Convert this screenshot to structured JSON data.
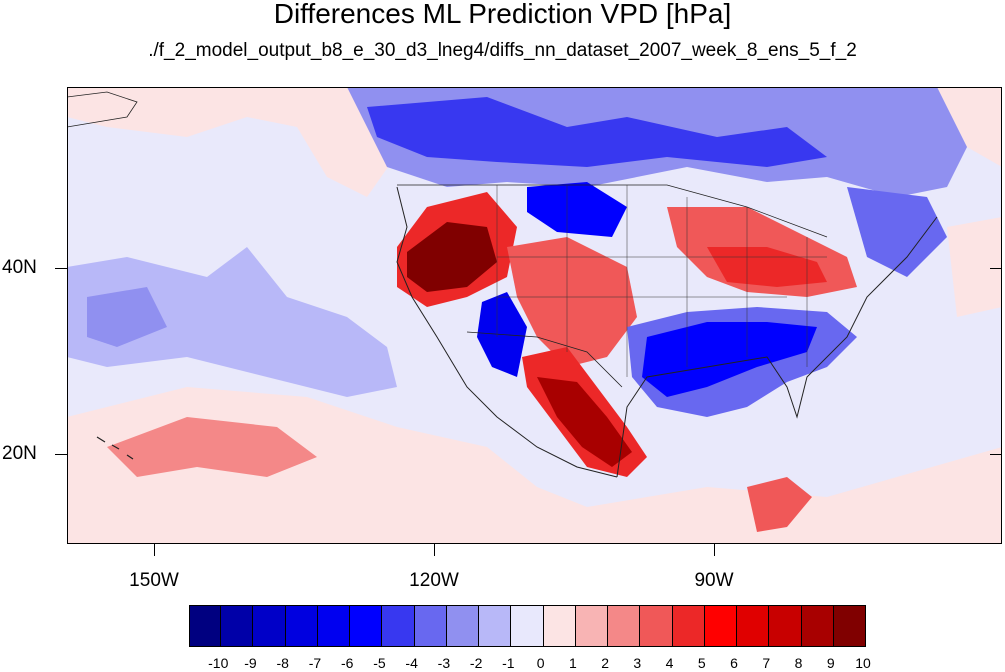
{
  "title": "Differences ML Prediction VPD [hPa]",
  "subtitle": "./f_2_model_output_b8_e_30_d3_lneg4/diffs_nn_dataset_2007_week_8_ens_5_f_2",
  "longitude_labels": [
    "150W",
    "120W",
    "90W"
  ],
  "latitude_labels": [
    "40N",
    "20N"
  ],
  "colorbar": {
    "labels": [
      "-10",
      "-9",
      "-8",
      "-7",
      "-6",
      "-5",
      "-4",
      "-3",
      "-2",
      "-1",
      "0",
      "1",
      "2",
      "3",
      "4",
      "5",
      "6",
      "7",
      "8",
      "9",
      "10"
    ],
    "colors": [
      "#000080",
      "#0000a8",
      "#0000c8",
      "#0000e0",
      "#0000f0",
      "#0000ff",
      "#3838f0",
      "#6868f0",
      "#9090f0",
      "#b8b8f8",
      "#e8e8fc",
      "#fce4e4",
      "#f8b4b4",
      "#f48888",
      "#f05858",
      "#ec2828",
      "#ff0000",
      "#e00000",
      "#c80000",
      "#a80000",
      "#800000"
    ]
  }
}
